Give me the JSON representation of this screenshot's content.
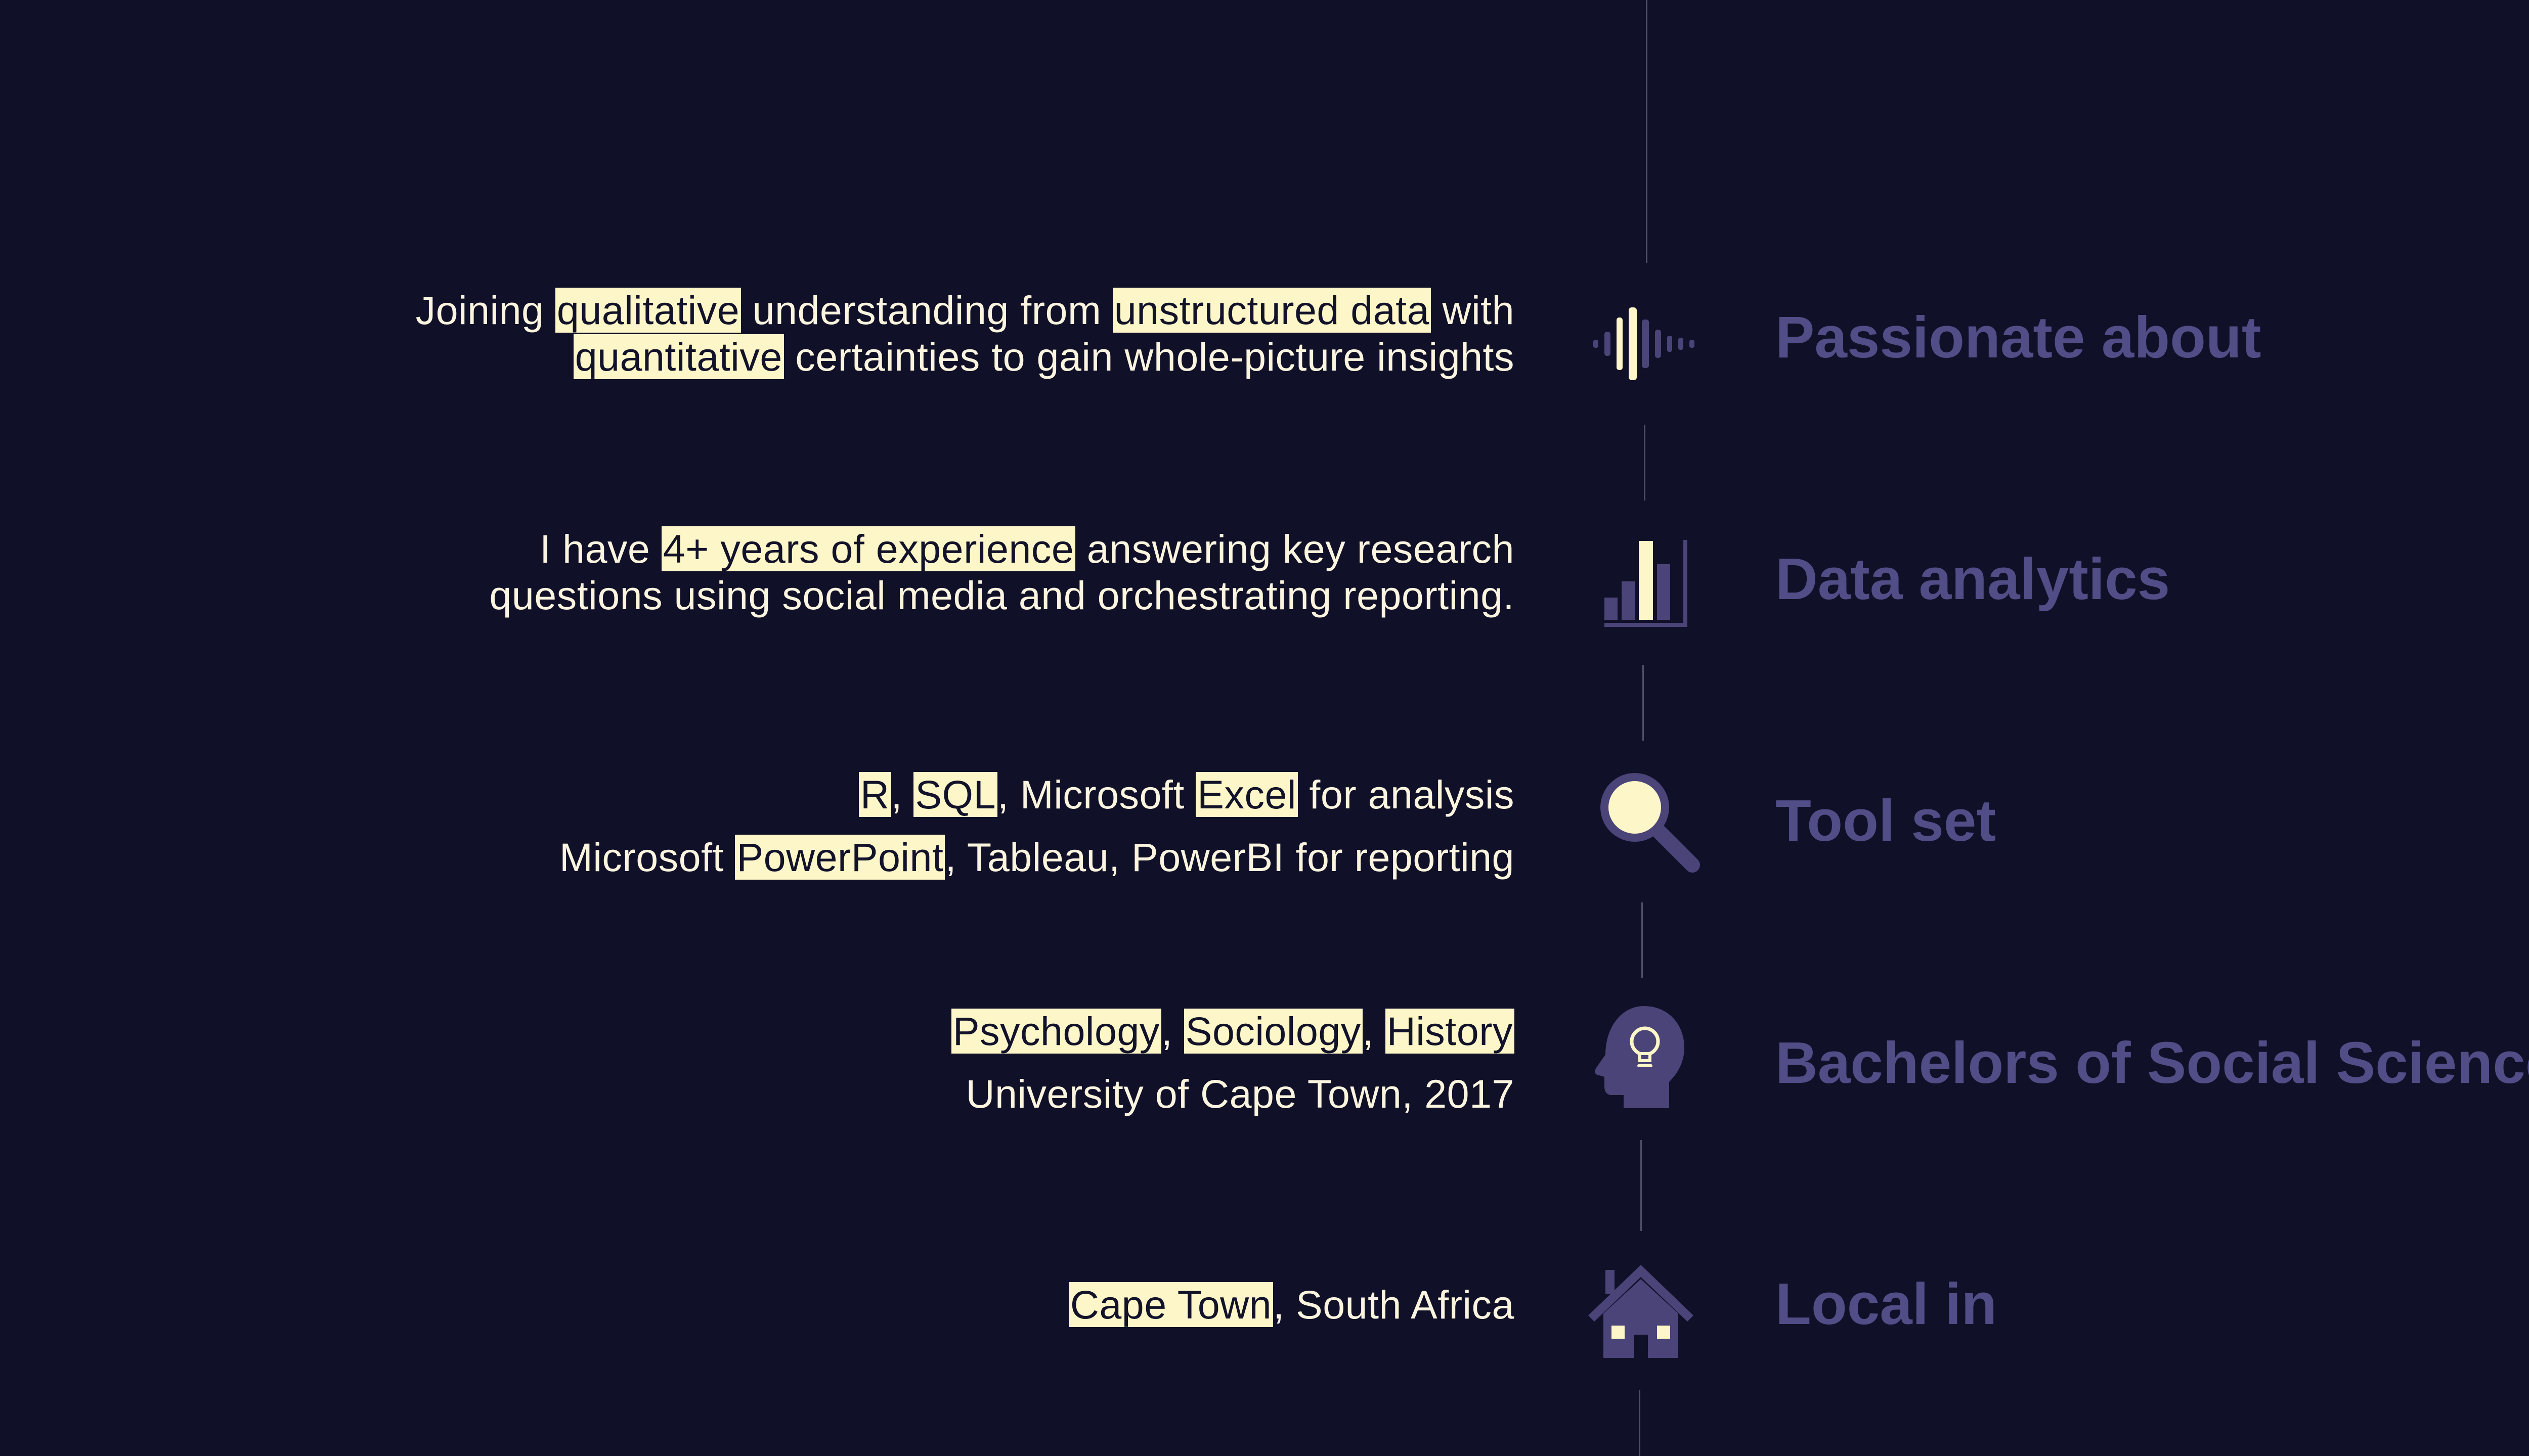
{
  "colors": {
    "background": "#101028",
    "body_text": "#fbf4df",
    "highlight_background": "#fdf6c8",
    "highlight_text": "#12122a",
    "title": "#514d86",
    "icon_fill": "#4a4478",
    "icon_accent": "#fdf6c8",
    "timeline": "#4f4f68"
  },
  "rows": [
    {
      "title": "Passionate about",
      "icon": "soundwave-icon",
      "lines": [
        [
          {
            "text": "Joining ",
            "hl": false
          },
          {
            "text": "qualitative",
            "hl": true
          },
          {
            "text": " understanding from ",
            "hl": false
          },
          {
            "text": "unstructured data",
            "hl": true
          },
          {
            "text": " with",
            "hl": false
          }
        ],
        [
          {
            "text": "quantitative",
            "hl": true
          },
          {
            "text": " certainties to gain whole-picture insights",
            "hl": false
          }
        ]
      ]
    },
    {
      "title": "Data analytics",
      "icon": "bar-chart-icon",
      "lines": [
        [
          {
            "text": "I have ",
            "hl": false
          },
          {
            "text": "4+ years of experience",
            "hl": true
          },
          {
            "text": " answering key research",
            "hl": false
          }
        ],
        [
          {
            "text": "questions using social media and orchestrating reporting.",
            "hl": false
          }
        ]
      ]
    },
    {
      "title": "Tool set",
      "icon": "magnifier-icon",
      "lines": [
        [
          {
            "text": "R",
            "hl": true
          },
          {
            "text": ", ",
            "hl": false
          },
          {
            "text": "SQL",
            "hl": true
          },
          {
            "text": ", Microsoft ",
            "hl": false
          },
          {
            "text": "Excel",
            "hl": true
          },
          {
            "text": " for analysis",
            "hl": false
          }
        ],
        [
          {
            "text": "Microsoft ",
            "hl": false
          },
          {
            "text": "PowerPoint",
            "hl": true
          },
          {
            "text": ", Tableau, PowerBI for reporting",
            "hl": false
          }
        ]
      ]
    },
    {
      "title": "Bachelors of Social Science",
      "icon": "head-lightbulb-icon",
      "lines": [
        [
          {
            "text": "Psychology",
            "hl": true
          },
          {
            "text": ", ",
            "hl": false
          },
          {
            "text": "Sociology",
            "hl": true
          },
          {
            "text": ", ",
            "hl": false
          },
          {
            "text": "History",
            "hl": true
          }
        ],
        [
          {
            "text": "University of Cape Town, 2017",
            "hl": false
          }
        ]
      ]
    },
    {
      "title": "Local in",
      "icon": "house-icon",
      "lines": [
        [
          {
            "text": "Cape Town",
            "hl": true
          },
          {
            "text": ", South Africa",
            "hl": false
          }
        ]
      ]
    }
  ]
}
